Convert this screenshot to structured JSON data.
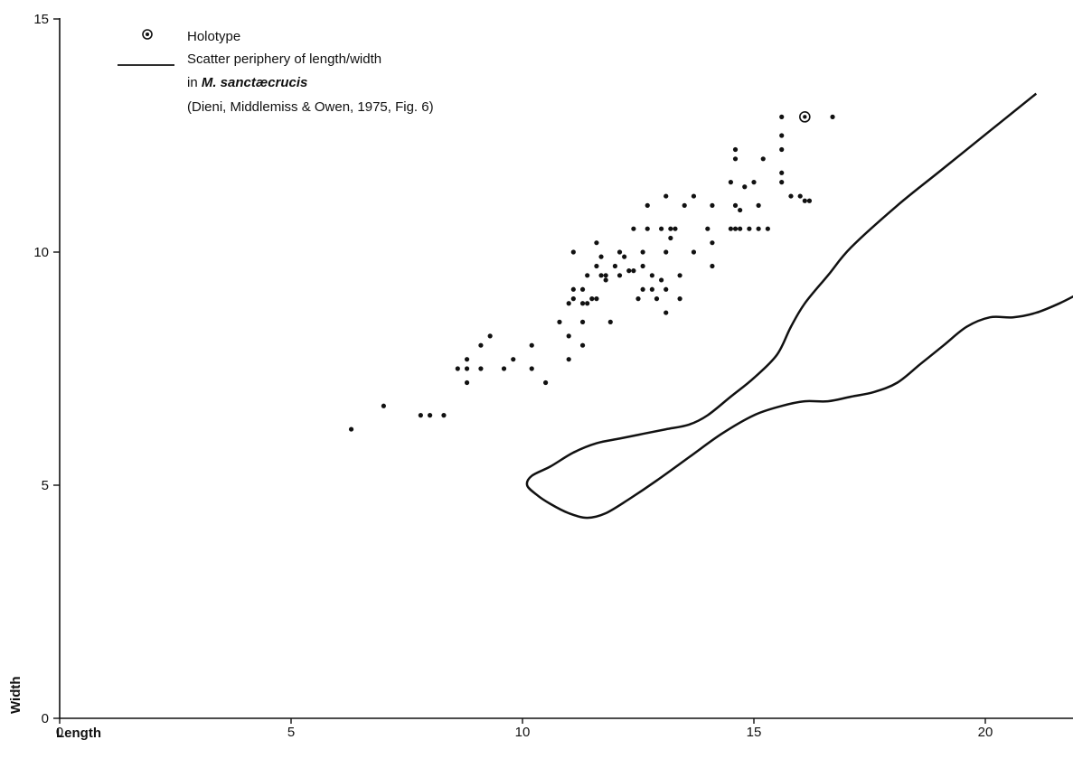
{
  "chart_data": {
    "type": "scatter",
    "title": "",
    "xlabel": "Length",
    "ylabel": "Width",
    "xlim": [
      0,
      22
    ],
    "ylim": [
      0,
      15
    ],
    "x_ticks": [
      0,
      5,
      10,
      15,
      20
    ],
    "y_ticks": [
      0,
      5,
      10,
      15
    ],
    "x_tick_labels": [
      "0",
      "5",
      "10",
      "15",
      "20"
    ],
    "y_tick_labels": [
      "0",
      "5",
      "10",
      "15"
    ],
    "grid": false,
    "legend_position": "top-left",
    "legend": {
      "holotype_label": "Holotype",
      "periphery_line1": "Scatter periphery of length/width",
      "periphery_line2_prefix": "in ",
      "periphery_line2_species": "M. sanctæcrucis",
      "periphery_line3": "(Dieni, Middlemiss & Owen, 1975, Fig. 6)"
    },
    "series": [
      {
        "kind": "points",
        "values": [
          [
            6.3,
            6.2
          ],
          [
            7.0,
            6.7
          ],
          [
            7.8,
            6.5
          ],
          [
            8.0,
            6.5
          ],
          [
            8.3,
            6.5
          ],
          [
            8.6,
            7.5
          ],
          [
            8.8,
            7.7
          ],
          [
            8.8,
            7.5
          ],
          [
            8.8,
            7.2
          ],
          [
            9.1,
            7.5
          ],
          [
            9.1,
            8.0
          ],
          [
            9.3,
            8.2
          ],
          [
            9.6,
            7.5
          ],
          [
            9.8,
            7.7
          ],
          [
            10.2,
            8.0
          ],
          [
            10.2,
            7.5
          ],
          [
            10.5,
            7.2
          ],
          [
            10.8,
            8.5
          ],
          [
            11.0,
            7.7
          ],
          [
            11.0,
            8.2
          ],
          [
            11.0,
            8.9
          ],
          [
            11.1,
            9.2
          ],
          [
            11.1,
            9.0
          ],
          [
            11.1,
            10.0
          ],
          [
            11.3,
            8.0
          ],
          [
            11.3,
            8.5
          ],
          [
            11.3,
            8.9
          ],
          [
            11.3,
            9.2
          ],
          [
            11.4,
            9.5
          ],
          [
            11.4,
            8.9
          ],
          [
            11.5,
            9.0
          ],
          [
            11.6,
            9.0
          ],
          [
            11.6,
            9.7
          ],
          [
            11.6,
            10.2
          ],
          [
            11.7,
            9.5
          ],
          [
            11.7,
            9.9
          ],
          [
            11.8,
            9.5
          ],
          [
            11.8,
            9.4
          ],
          [
            11.9,
            8.5
          ],
          [
            12.0,
            9.7
          ],
          [
            12.1,
            9.5
          ],
          [
            12.1,
            10.0
          ],
          [
            12.2,
            9.9
          ],
          [
            12.3,
            9.6
          ],
          [
            12.4,
            9.6
          ],
          [
            12.4,
            10.5
          ],
          [
            12.5,
            9.0
          ],
          [
            12.6,
            9.2
          ],
          [
            12.6,
            9.7
          ],
          [
            12.6,
            10.0
          ],
          [
            12.7,
            10.5
          ],
          [
            12.7,
            11.0
          ],
          [
            12.8,
            9.5
          ],
          [
            12.8,
            9.2
          ],
          [
            12.9,
            9.0
          ],
          [
            13.0,
            10.5
          ],
          [
            13.0,
            9.4
          ],
          [
            13.1,
            9.2
          ],
          [
            13.1,
            8.7
          ],
          [
            13.1,
            10.0
          ],
          [
            13.1,
            11.2
          ],
          [
            13.2,
            10.3
          ],
          [
            13.2,
            10.5
          ],
          [
            13.3,
            10.5
          ],
          [
            13.4,
            9.0
          ],
          [
            13.4,
            9.5
          ],
          [
            13.5,
            11.0
          ],
          [
            13.7,
            10.0
          ],
          [
            13.7,
            11.2
          ],
          [
            14.0,
            10.5
          ],
          [
            14.1,
            9.7
          ],
          [
            14.1,
            10.2
          ],
          [
            14.1,
            11.0
          ],
          [
            14.5,
            10.5
          ],
          [
            14.5,
            11.5
          ],
          [
            14.6,
            10.5
          ],
          [
            14.6,
            11.0
          ],
          [
            14.6,
            12.0
          ],
          [
            14.6,
            12.2
          ],
          [
            14.7,
            10.5
          ],
          [
            14.7,
            10.9
          ],
          [
            14.8,
            11.4
          ],
          [
            14.9,
            10.5
          ],
          [
            15.0,
            11.5
          ],
          [
            15.1,
            10.5
          ],
          [
            15.1,
            11.0
          ],
          [
            15.2,
            12.0
          ],
          [
            15.3,
            10.5
          ],
          [
            15.6,
            11.5
          ],
          [
            15.6,
            11.7
          ],
          [
            15.6,
            12.2
          ],
          [
            15.6,
            12.5
          ],
          [
            15.6,
            12.9
          ],
          [
            15.8,
            11.2
          ],
          [
            16.0,
            11.2
          ],
          [
            16.1,
            11.1
          ],
          [
            16.2,
            11.1
          ],
          [
            16.7,
            12.9
          ]
        ]
      },
      {
        "kind": "holotype",
        "values": [
          [
            16.1,
            12.9
          ]
        ]
      },
      {
        "kind": "periphery_curve",
        "values": [
          [
            21.1,
            13.4
          ],
          [
            20.1,
            12.6
          ],
          [
            19.1,
            11.8
          ],
          [
            18.1,
            11.0
          ],
          [
            17.1,
            10.1
          ],
          [
            16.6,
            9.5
          ],
          [
            16.1,
            8.9
          ],
          [
            15.8,
            8.4
          ],
          [
            15.5,
            7.8
          ],
          [
            15.0,
            7.3
          ],
          [
            14.5,
            6.9
          ],
          [
            14.0,
            6.5
          ],
          [
            13.6,
            6.3
          ],
          [
            13.1,
            6.2
          ],
          [
            12.6,
            6.1
          ],
          [
            12.1,
            6.0
          ],
          [
            11.6,
            5.9
          ],
          [
            11.1,
            5.7
          ],
          [
            10.6,
            5.4
          ],
          [
            10.2,
            5.2
          ],
          [
            10.1,
            5.0
          ],
          [
            10.3,
            4.8
          ],
          [
            10.6,
            4.6
          ],
          [
            11.0,
            4.4
          ],
          [
            11.4,
            4.3
          ],
          [
            11.8,
            4.4
          ],
          [
            12.3,
            4.7
          ],
          [
            12.9,
            5.1
          ],
          [
            13.6,
            5.6
          ],
          [
            14.3,
            6.1
          ],
          [
            15.0,
            6.5
          ],
          [
            15.6,
            6.7
          ],
          [
            16.1,
            6.8
          ],
          [
            16.6,
            6.8
          ],
          [
            17.1,
            6.9
          ],
          [
            17.6,
            7.0
          ],
          [
            18.1,
            7.2
          ],
          [
            18.6,
            7.6
          ],
          [
            19.1,
            8.0
          ],
          [
            19.6,
            8.4
          ],
          [
            20.1,
            8.6
          ],
          [
            20.6,
            8.6
          ],
          [
            21.1,
            8.7
          ],
          [
            21.6,
            8.9
          ],
          [
            22.0,
            9.1
          ]
        ]
      }
    ]
  }
}
